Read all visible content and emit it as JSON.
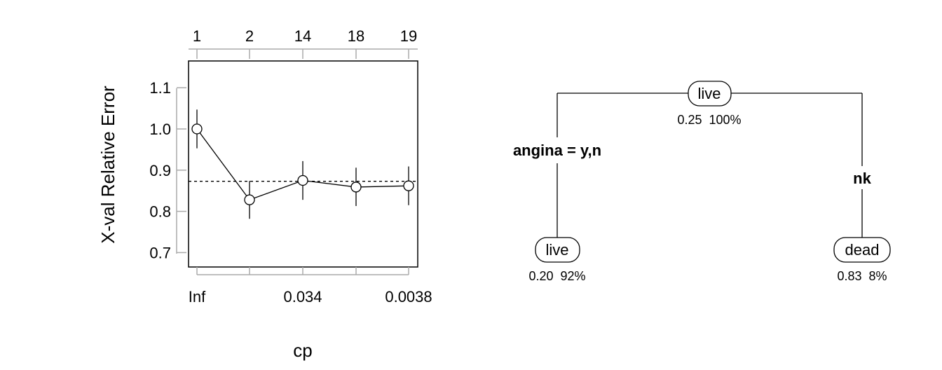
{
  "chart_data": [
    {
      "type": "line",
      "ylabel": "X-val Relative Error",
      "xlabel": "cp",
      "top_axis_ticks": [
        "1",
        "2",
        "14",
        "18",
        "19"
      ],
      "bottom_axis_ticks": [
        "Inf",
        "",
        "0.034",
        "",
        "0.0038"
      ],
      "ylim": [
        0.665,
        1.165
      ],
      "y_ticks": [
        "0.7",
        "0.8",
        "0.9",
        "1.0",
        "1.1"
      ],
      "series": [
        {
          "values": [
            1.0,
            0.828,
            0.875,
            0.859,
            0.862
          ],
          "err_low": [
            0.953,
            0.782,
            0.828,
            0.813,
            0.815
          ],
          "err_high": [
            1.047,
            0.874,
            0.922,
            0.906,
            0.909
          ]
        }
      ],
      "reference_line": 0.873,
      "grid": false
    }
  ],
  "tree": {
    "root": {
      "label": "live",
      "stats": "0.25  100%"
    },
    "split_left": "angina = y,n",
    "split_right": "nk",
    "leaf_left": {
      "label": "live",
      "stats": "0.20  92%"
    },
    "leaf_right": {
      "label": "dead",
      "stats": "0.83  8%"
    }
  }
}
